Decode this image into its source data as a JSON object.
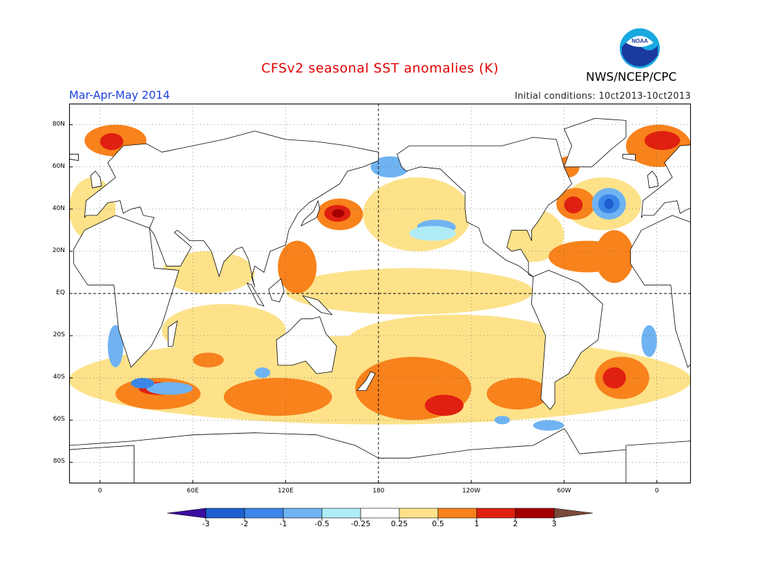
{
  "header": {
    "title": "CFSv2 seasonal SST anomalies (K)",
    "season": "Mar-Apr-May 2014",
    "initial_conditions": "Initial conditions: 10ct2013-10ct2013",
    "agency": "NWS/NCEP/CPC",
    "logo_text": "NOAA"
  },
  "map": {
    "projection": "equirectangular",
    "lon_range": [
      -20,
      382
    ],
    "lat_range": [
      -90,
      90
    ],
    "lat_labels": [
      "80N",
      "60N",
      "40N",
      "20N",
      "EQ",
      "20S",
      "40S",
      "60S",
      "80S"
    ],
    "lon_labels": [
      "0",
      "60E",
      "120E",
      "180",
      "120W",
      "60W",
      "0"
    ],
    "grid": "dotted",
    "reference_lines": [
      "equator",
      "dateline"
    ]
  },
  "colorbar": {
    "labels": [
      "-3",
      "-2",
      "-1",
      "-0.5",
      "-0.25",
      "0.25",
      "0.5",
      "1",
      "2",
      "3"
    ],
    "colors": [
      "#3a0ea0",
      "#1e5fd0",
      "#3b86e8",
      "#6fb3f2",
      "#b0ecf6",
      "#ffffff",
      "#fde28a",
      "#f8821c",
      "#e02010",
      "#a50000",
      "#7a4a3a"
    ]
  }
}
